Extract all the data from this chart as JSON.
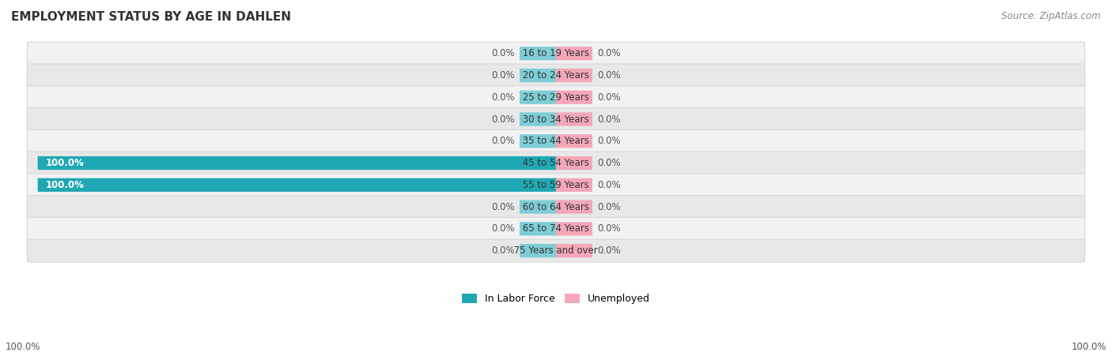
{
  "title": "EMPLOYMENT STATUS BY AGE IN DAHLEN",
  "source": "Source: ZipAtlas.com",
  "age_groups": [
    "16 to 19 Years",
    "20 to 24 Years",
    "25 to 29 Years",
    "30 to 34 Years",
    "35 to 44 Years",
    "45 to 54 Years",
    "55 to 59 Years",
    "60 to 64 Years",
    "65 to 74 Years",
    "75 Years and over"
  ],
  "labor_force": [
    0.0,
    0.0,
    0.0,
    0.0,
    0.0,
    100.0,
    100.0,
    0.0,
    0.0,
    0.0
  ],
  "unemployed": [
    0.0,
    0.0,
    0.0,
    0.0,
    0.0,
    0.0,
    0.0,
    0.0,
    0.0,
    0.0
  ],
  "labor_force_color_zero": "#7ecdd6",
  "labor_force_color_full": "#1fa8b4",
  "unemployed_color": "#f4a7b9",
  "row_bg_light": "#f2f2f2",
  "row_bg_dark": "#e8e8e8",
  "background_color": "#ffffff",
  "axis_range": 100.0,
  "stub_size": 7.0,
  "legend_label_left": "In Labor Force",
  "legend_label_right": "Unemployed",
  "bottom_left_label": "100.0%",
  "bottom_right_label": "100.0%"
}
